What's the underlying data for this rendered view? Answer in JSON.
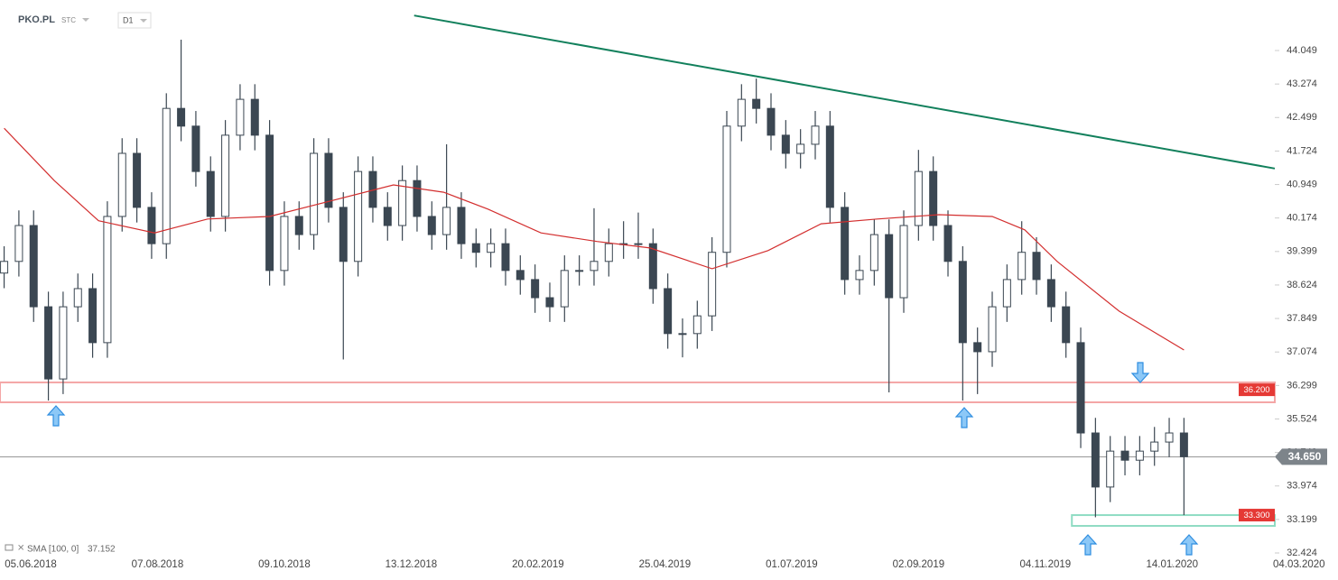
{
  "chart_data": {
    "type": "candlestick",
    "symbol": "PKO.PL",
    "market": "STC",
    "interval": "D1",
    "color": "#3b4752",
    "x": [
      -9,
      -4,
      1,
      6,
      11,
      16,
      21,
      26,
      31,
      36,
      41,
      46,
      51,
      56,
      61,
      66,
      71,
      76,
      81,
      86,
      91,
      96,
      101,
      106,
      111,
      116,
      121,
      126,
      131,
      136,
      141,
      146,
      151,
      156,
      161,
      166,
      171,
      176,
      181,
      186,
      191,
      196,
      201,
      206,
      211,
      216,
      221,
      226,
      231,
      236,
      241,
      246,
      251,
      256,
      261,
      266,
      271,
      276,
      281,
      286,
      291,
      296,
      301,
      306,
      311,
      316,
      321,
      326,
      331,
      336,
      341,
      346,
      351,
      356,
      361,
      366,
      371,
      376,
      381,
      386,
      391
    ],
    "open": [
      38.9,
      39.17,
      40.0,
      38.12,
      36.45,
      38.12,
      38.54,
      37.29,
      40.21,
      41.67,
      40.42,
      39.58,
      42.71,
      42.3,
      41.25,
      40.21,
      42.09,
      42.92,
      42.09,
      38.96,
      40.21,
      39.79,
      41.67,
      40.42,
      39.17,
      41.25,
      40.42,
      40.0,
      41.04,
      40.21,
      39.79,
      40.42,
      39.58,
      39.38,
      39.58,
      38.96,
      38.75,
      38.33,
      38.12,
      38.96,
      38.96,
      39.17,
      39.58,
      39.58,
      39.58,
      38.54,
      37.5,
      37.5,
      37.91,
      39.38,
      42.3,
      42.92,
      42.71,
      42.09,
      41.67,
      41.88,
      42.3,
      40.42,
      38.75,
      38.96,
      39.79,
      38.33,
      40.0,
      41.25,
      40.0,
      39.17,
      37.29,
      37.08,
      38.12,
      38.75,
      39.38,
      38.75,
      38.12,
      37.29,
      35.2,
      33.95,
      34.78,
      34.57,
      34.78,
      34.99,
      35.2
    ],
    "high": [
      39.52,
      40.35,
      40.35,
      38.47,
      38.47,
      38.89,
      38.89,
      40.56,
      42.02,
      42.02,
      40.77,
      43.06,
      44.3,
      42.65,
      41.6,
      42.44,
      43.27,
      43.27,
      42.44,
      40.56,
      40.56,
      42.02,
      42.02,
      40.77,
      41.6,
      41.6,
      40.77,
      41.39,
      41.39,
      40.56,
      41.88,
      40.77,
      39.93,
      39.93,
      39.93,
      39.31,
      39.1,
      38.68,
      39.31,
      39.31,
      40.4,
      39.93,
      40.1,
      40.3,
      39.93,
      38.89,
      37.85,
      38.26,
      39.73,
      42.65,
      43.27,
      43.4,
      43.06,
      42.44,
      42.23,
      42.65,
      42.65,
      40.77,
      39.31,
      40.14,
      40.14,
      40.35,
      41.75,
      41.6,
      40.35,
      39.52,
      37.64,
      38.47,
      39.1,
      40.1,
      39.73,
      39.1,
      38.47,
      37.64,
      35.55,
      35.13,
      35.13,
      35.13,
      35.34,
      35.55,
      35.55
    ],
    "low": [
      38.55,
      38.82,
      37.77,
      35.95,
      36.1,
      37.77,
      36.94,
      36.94,
      39.86,
      40.07,
      39.23,
      39.23,
      41.95,
      40.9,
      39.86,
      39.86,
      41.74,
      41.74,
      38.61,
      38.61,
      39.44,
      39.44,
      40.07,
      36.9,
      38.82,
      40.07,
      39.65,
      39.65,
      39.86,
      39.44,
      39.44,
      39.23,
      39.03,
      39.03,
      38.61,
      38.4,
      37.98,
      37.77,
      37.77,
      38.61,
      38.61,
      38.82,
      39.23,
      39.23,
      38.19,
      37.15,
      36.95,
      37.15,
      37.56,
      39.03,
      41.95,
      42.36,
      41.74,
      41.32,
      41.32,
      41.53,
      40.07,
      38.4,
      38.4,
      38.61,
      36.14,
      37.98,
      39.65,
      39.65,
      38.82,
      35.95,
      36.1,
      36.73,
      37.77,
      38.4,
      38.4,
      37.77,
      36.94,
      34.85,
      33.25,
      33.6,
      34.22,
      34.22,
      34.44,
      34.64,
      33.3
    ],
    "close": [
      39.17,
      40.0,
      38.12,
      36.45,
      38.12,
      38.54,
      37.29,
      40.21,
      41.67,
      40.42,
      39.58,
      42.71,
      42.3,
      41.25,
      40.21,
      42.09,
      42.92,
      42.09,
      38.96,
      40.21,
      39.79,
      41.67,
      40.42,
      39.17,
      41.25,
      40.42,
      40.0,
      41.04,
      40.21,
      39.79,
      40.42,
      39.58,
      39.38,
      39.58,
      38.96,
      38.75,
      38.33,
      38.12,
      38.96,
      38.96,
      39.17,
      39.58,
      39.58,
      39.58,
      38.54,
      37.5,
      37.5,
      37.91,
      39.38,
      42.3,
      42.92,
      42.71,
      42.09,
      41.67,
      41.88,
      42.3,
      40.42,
      38.75,
      38.96,
      39.79,
      38.33,
      40.0,
      41.25,
      40.0,
      39.17,
      37.29,
      37.08,
      38.12,
      38.75,
      39.38,
      38.75,
      38.12,
      37.29,
      35.2,
      33.95,
      34.78,
      34.57,
      34.78,
      34.99,
      35.2,
      34.65
    ],
    "xlim": [
      -10.4,
      421.8
    ],
    "ylim": [
      32.174,
      45.218
    ],
    "xticks": [
      {
        "value": 0,
        "label": "05.06.2018"
      },
      {
        "value": 43,
        "label": "07.08.2018"
      },
      {
        "value": 86,
        "label": "09.10.2018"
      },
      {
        "value": 129,
        "label": "13.12.2018"
      },
      {
        "value": 172,
        "label": "20.02.2019"
      },
      {
        "value": 215,
        "label": "25.04.2019"
      },
      {
        "value": 258,
        "label": "01.07.2019"
      },
      {
        "value": 301,
        "label": "02.09.2019"
      },
      {
        "value": 344,
        "label": "04.11.2019"
      },
      {
        "value": 387,
        "label": "14.01.2020"
      },
      {
        "value": 430,
        "label": "04.03.2020"
      }
    ],
    "yticks": [
      44.049,
      43.274,
      42.499,
      41.724,
      40.949,
      40.174,
      39.399,
      38.624,
      37.849,
      37.074,
      36.299,
      35.524,
      34.749,
      33.974,
      33.199,
      32.424
    ],
    "sma": {
      "label": "SMA [100, 0]",
      "value": 37.152,
      "color": "#d32f2f",
      "x": [
        -9,
        8,
        23,
        42,
        60,
        81,
        103,
        123,
        140,
        155,
        173,
        192,
        210,
        231,
        250,
        268,
        287,
        308,
        326,
        337,
        348,
        369,
        391
      ],
      "values": [
        42.25,
        41.04,
        40.11,
        39.83,
        40.15,
        40.21,
        40.59,
        40.94,
        40.77,
        40.38,
        39.83,
        39.63,
        39.48,
        39.0,
        39.42,
        40.04,
        40.15,
        40.25,
        40.21,
        39.9,
        39.17,
        38.02,
        37.12
      ]
    },
    "trendline": {
      "color": "#12805c",
      "x": [
        130,
        421.8
      ],
      "values": [
        44.86,
        41.32
      ]
    },
    "levels": [
      {
        "value": 36.2,
        "label": "36.200",
        "range": [
          36.37,
          35.91
        ],
        "color": "#f4a6a6",
        "badge": "#e53935"
      },
      {
        "value": 33.3,
        "label": "33.300",
        "range": [
          33.3,
          33.05
        ],
        "x": [
          353,
          421.8
        ],
        "color": "#8fdcc3",
        "badge": "#e53935"
      }
    ],
    "last_price": {
      "value": 34.65,
      "label": "34.650"
    }
  }
}
